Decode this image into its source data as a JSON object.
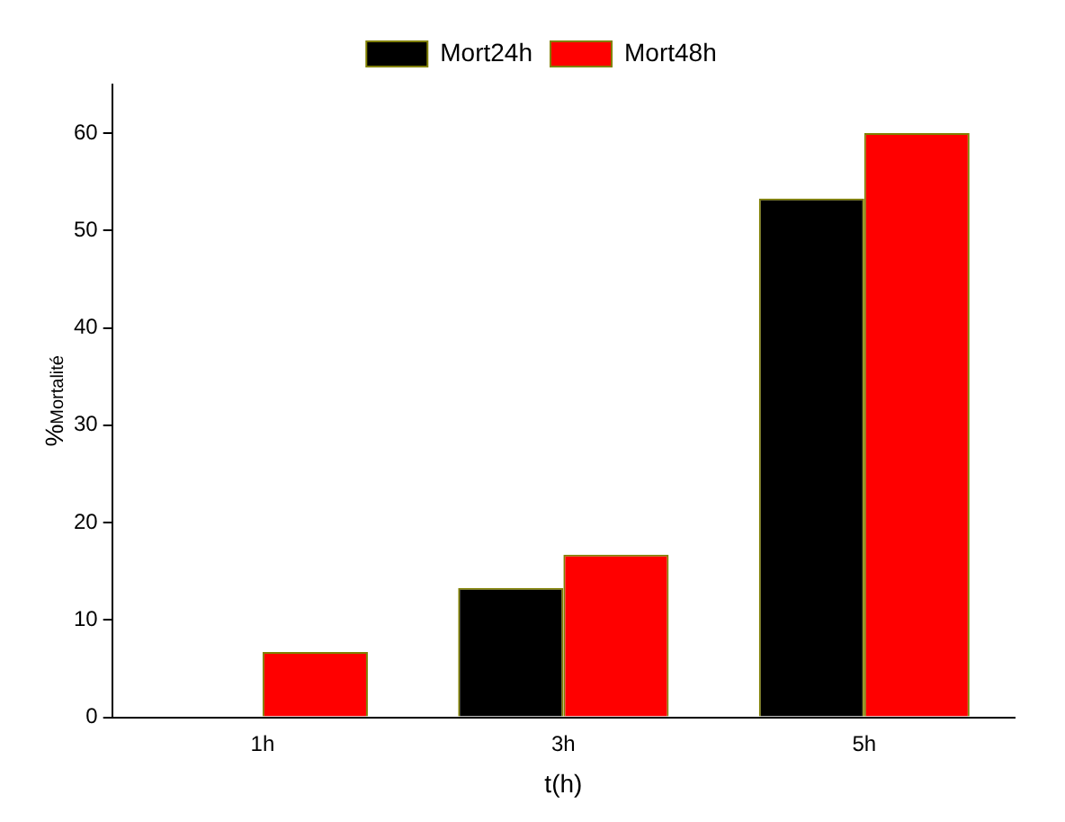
{
  "chart_data": {
    "type": "bar",
    "xlabel": "t(h)",
    "ylabel": "%$_{Mortalité}$",
    "categories": [
      "1h",
      "3h",
      "5h"
    ],
    "series": [
      {
        "name": "Mort24h",
        "color": "#000000",
        "values": [
          0,
          13.3,
          53.3
        ]
      },
      {
        "name": "Mort48h",
        "color": "#ff0000",
        "values": [
          6.7,
          16.7,
          60
        ]
      }
    ],
    "ylim": [
      0,
      65
    ],
    "yticks": [
      0,
      10,
      20,
      30,
      40,
      50,
      60
    ],
    "grid": false,
    "legend": "top"
  }
}
